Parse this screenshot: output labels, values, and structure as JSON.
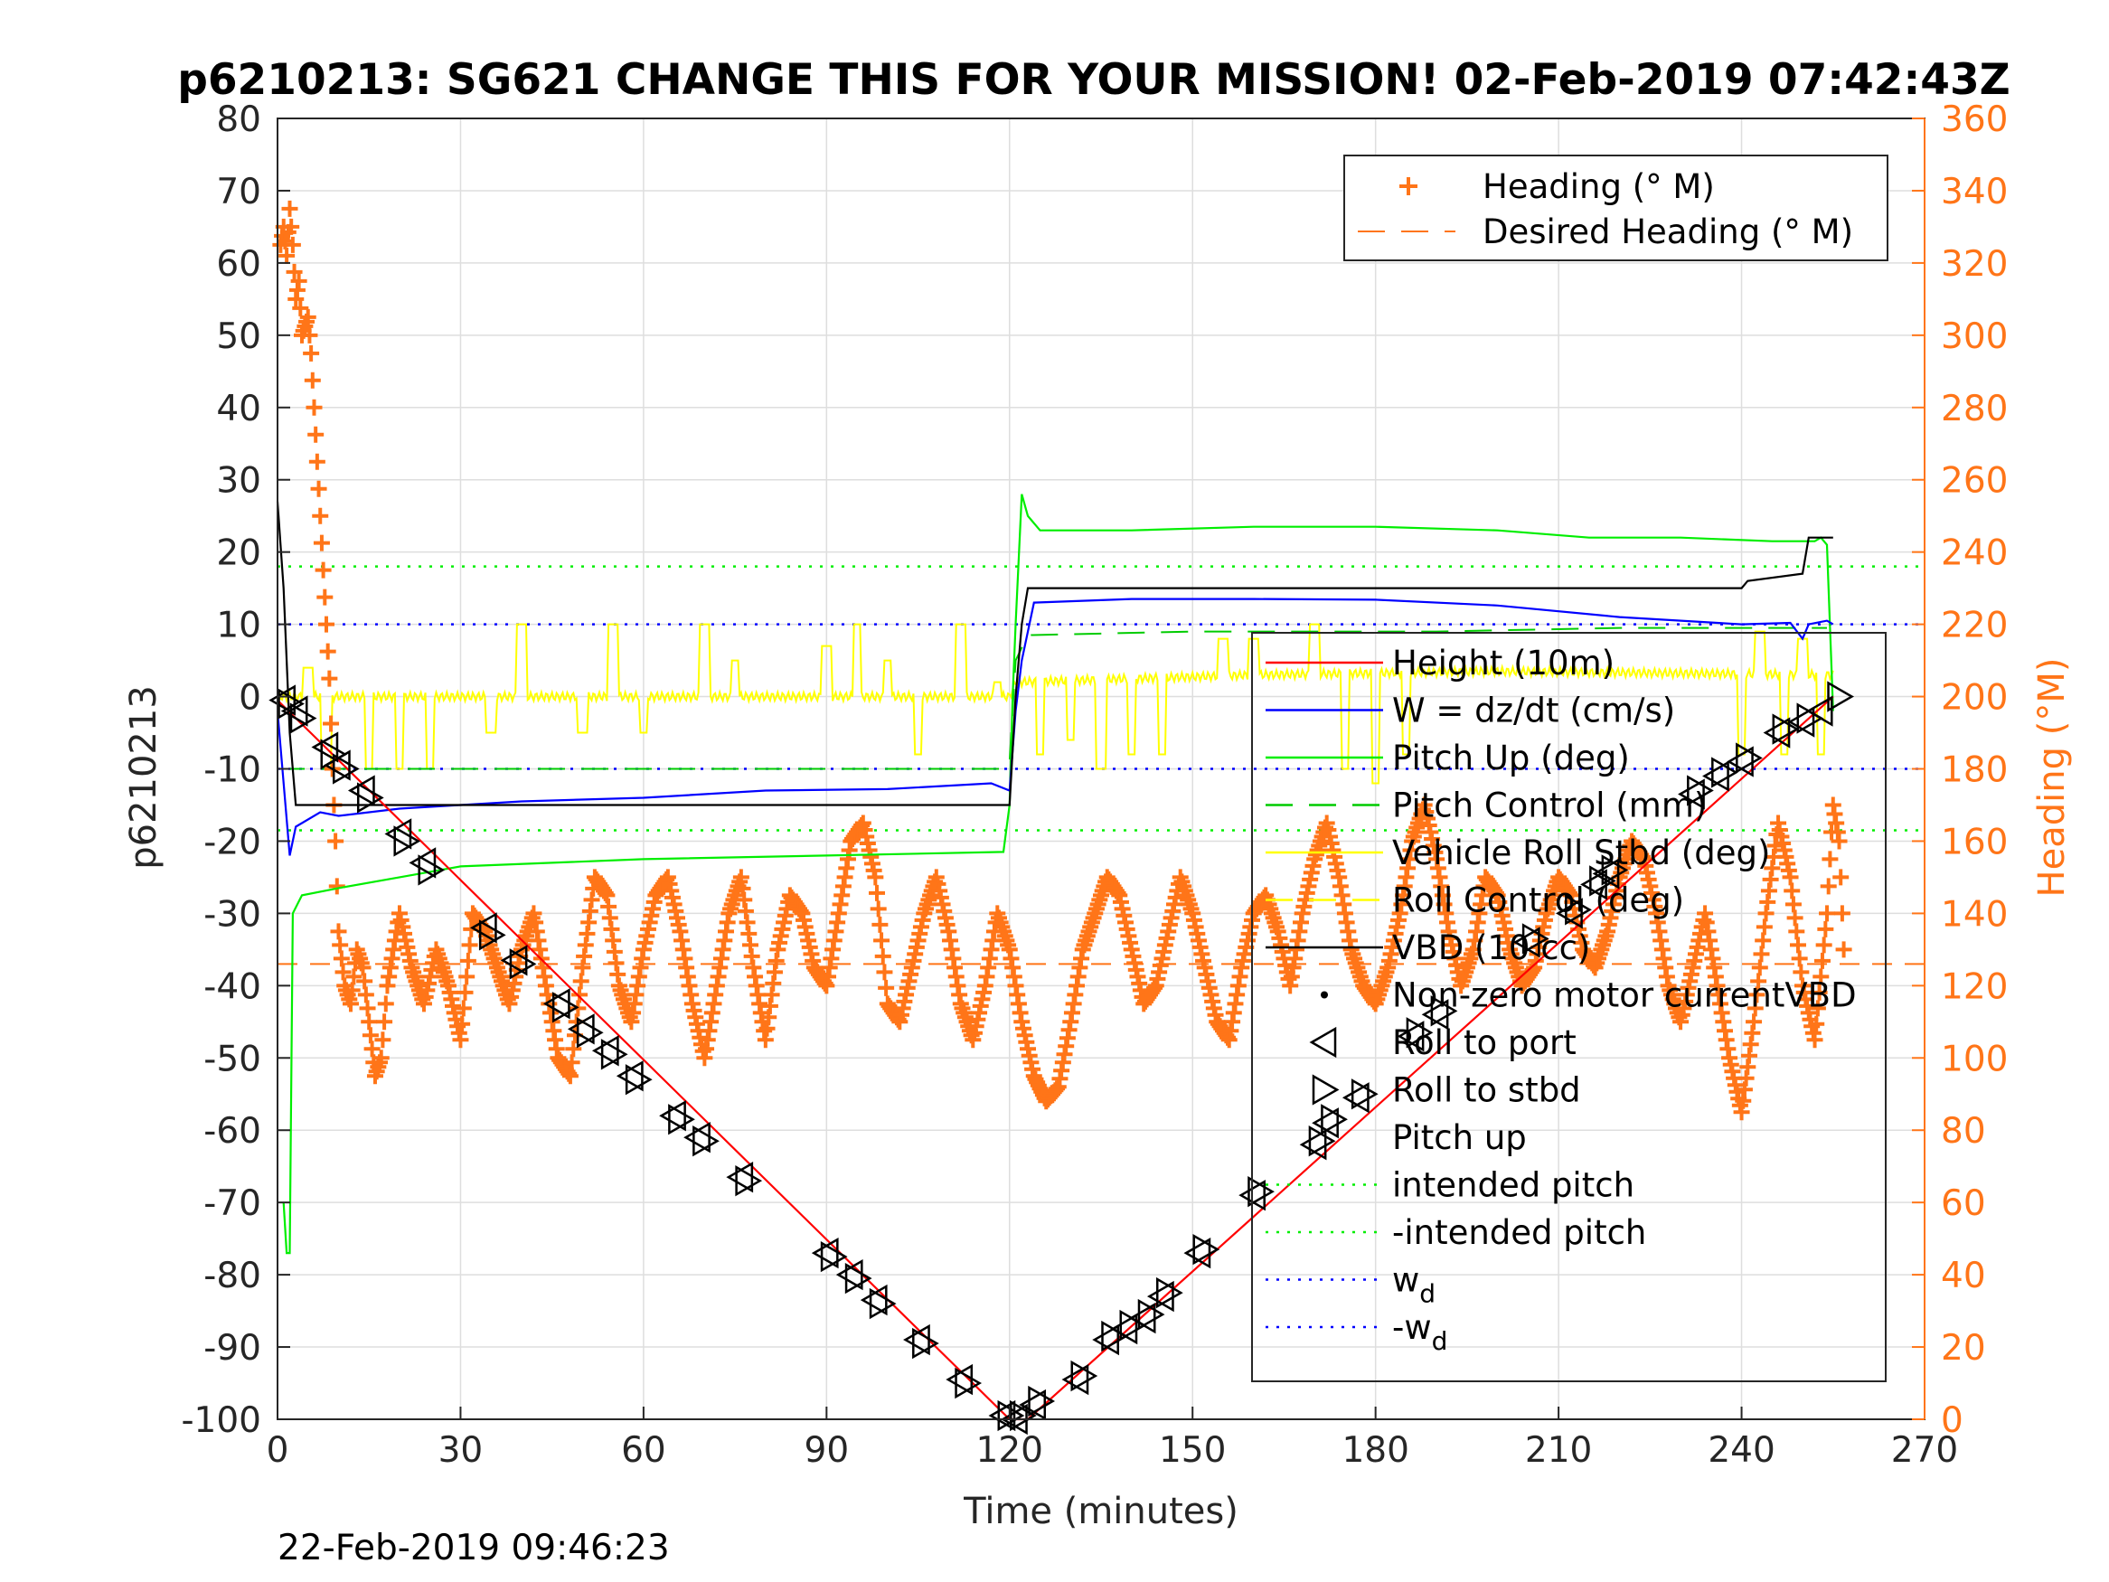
{
  "chart_data": {
    "type": "line",
    "title": "p6210213: SG621 CHANGE THIS FOR YOUR MISSION! 02-Feb-2019 07:42:43Z",
    "xlabel": "Time (minutes)",
    "ylabel_left": "p6210213",
    "ylabel_right": "Heading (°M)",
    "xlim": [
      0,
      270
    ],
    "ylim_left": [
      -100,
      80
    ],
    "ylim_right": [
      0,
      360
    ],
    "xticks": [
      "0",
      "30",
      "60",
      "90",
      "120",
      "150",
      "180",
      "210",
      "240",
      "270"
    ],
    "yticks_left": [
      "80",
      "70",
      "60",
      "50",
      "40",
      "30",
      "20",
      "10",
      "0",
      "-10",
      "-20",
      "-30",
      "-40",
      "-50",
      "-60",
      "-70",
      "-80",
      "-90",
      "-100"
    ],
    "yticks_right": [
      "360",
      "340",
      "320",
      "300",
      "280",
      "260",
      "240",
      "220",
      "200",
      "180",
      "160",
      "140",
      "120",
      "100",
      "80",
      "60",
      "40",
      "20",
      "0"
    ],
    "grid": true,
    "colors": {
      "height": "#ff0000",
      "w": "#0000ff",
      "pitch": "#00ee00",
      "pitch_control": "#00cc00",
      "roll": "#ffff00",
      "vbd": "#000000",
      "heading": "#ff7518",
      "intended": "#00ee00",
      "wd": "#0000ff"
    },
    "legend_top": {
      "placement": "top-right",
      "items": [
        {
          "label": "Heading (° M)",
          "marker": "plus",
          "color": "#ff7518"
        },
        {
          "label": "Desired Heading (° M)",
          "marker": "dash",
          "color": "#ff7518"
        }
      ]
    },
    "legend_main": {
      "placement": "right",
      "items": [
        {
          "label": "Height (10m)",
          "style": "solid",
          "color": "#ff0000"
        },
        {
          "label": "W = dz/dt (cm/s)",
          "style": "solid",
          "color": "#0000ff"
        },
        {
          "label": "Pitch Up (deg)",
          "style": "solid",
          "color": "#00ee00"
        },
        {
          "label": "Pitch Control (mm)",
          "style": "dash",
          "color": "#00cc00"
        },
        {
          "label": "Vehicle Roll Stbd (deg)",
          "style": "solid",
          "color": "#ffff00"
        },
        {
          "label": "Roll Control (deg)",
          "style": "dash",
          "color": "#ffff00"
        },
        {
          "label": "VBD (10 cc)",
          "style": "solid",
          "color": "#000000"
        },
        {
          "label": "Non-zero motor currentVBD",
          "style": "dot",
          "color": "#000000"
        },
        {
          "label": "Roll to port",
          "style": "tri-left",
          "color": "#000000"
        },
        {
          "label": "Roll to stbd",
          "style": "tri-right",
          "color": "#000000"
        },
        {
          "label": "Pitch up",
          "style": "none",
          "color": "#000000"
        },
        {
          "label": "intended pitch",
          "style": "dotted",
          "color": "#00ee00"
        },
        {
          "label": "-intended pitch",
          "style": "dotted",
          "color": "#00ee00"
        },
        {
          "label": "w",
          "sub": "d",
          "style": "dotted",
          "color": "#0000ff"
        },
        {
          "label": "-w",
          "sub": "d",
          "style": "dotted",
          "color": "#0000ff"
        }
      ]
    },
    "constants": {
      "intended_pitch": 18,
      "neg_intended_pitch": -18.5,
      "wd": 10,
      "neg_wd": -10,
      "desired_heading": 126
    },
    "height_path": [
      [
        0,
        -0.5
      ],
      [
        120,
        -100
      ],
      [
        123,
        -100
      ],
      [
        255,
        0
      ]
    ],
    "vbd": [
      [
        0,
        27
      ],
      [
        1,
        15
      ],
      [
        2,
        -5
      ],
      [
        3,
        -15
      ],
      [
        120,
        -15
      ],
      [
        121,
        0
      ],
      [
        122,
        10
      ],
      [
        123,
        15
      ],
      [
        240,
        15
      ],
      [
        241,
        16
      ],
      [
        250,
        17
      ],
      [
        251,
        22
      ],
      [
        255,
        22
      ]
    ],
    "w": [
      [
        0,
        -2
      ],
      [
        2,
        -22
      ],
      [
        3,
        -18
      ],
      [
        7,
        -16
      ],
      [
        10,
        -16.5
      ],
      [
        20,
        -15.5
      ],
      [
        40,
        -14.5
      ],
      [
        60,
        -14
      ],
      [
        80,
        -13
      ],
      [
        100,
        -12.8
      ],
      [
        117,
        -12
      ],
      [
        120,
        -13
      ],
      [
        121,
        -2
      ],
      [
        122,
        5
      ],
      [
        124,
        13
      ],
      [
        140,
        13.5
      ],
      [
        160,
        13.5
      ],
      [
        180,
        13.4
      ],
      [
        200,
        12.6
      ],
      [
        220,
        11
      ],
      [
        240,
        10
      ],
      [
        248,
        10.2
      ],
      [
        250,
        8
      ],
      [
        251,
        10
      ],
      [
        254,
        10.5
      ],
      [
        255,
        10
      ]
    ],
    "pitch": [
      [
        1,
        -70
      ],
      [
        1.5,
        -77
      ],
      [
        2,
        -77
      ],
      [
        2.5,
        -30
      ],
      [
        4,
        -27.5
      ],
      [
        10,
        -26.5
      ],
      [
        20,
        -25
      ],
      [
        30,
        -23.5
      ],
      [
        60,
        -22.5
      ],
      [
        90,
        -22
      ],
      [
        119,
        -21.5
      ],
      [
        120,
        -15
      ],
      [
        120.5,
        0
      ],
      [
        121,
        10
      ],
      [
        122,
        28
      ],
      [
        123,
        25
      ],
      [
        125,
        23
      ],
      [
        140,
        23
      ],
      [
        160,
        23.5
      ],
      [
        180,
        23.5
      ],
      [
        200,
        23
      ],
      [
        215,
        22
      ],
      [
        230,
        22
      ],
      [
        245,
        21.5
      ],
      [
        252,
        21.5
      ],
      [
        253,
        22
      ],
      [
        254,
        21
      ],
      [
        255,
        -2
      ]
    ],
    "pitch_control": [
      [
        0,
        -10
      ],
      [
        119,
        -10
      ],
      [
        120,
        -9
      ],
      [
        121,
        5
      ],
      [
        123,
        8.5
      ],
      [
        150,
        9
      ],
      [
        190,
        9
      ],
      [
        220,
        9.5
      ],
      [
        254,
        9.5
      ]
    ],
    "roll_base": [
      [
        0,
        0
      ],
      [
        120,
        0
      ],
      [
        121,
        2
      ],
      [
        160,
        3
      ],
      [
        200,
        3.5
      ],
      [
        255,
        3
      ]
    ],
    "roll_events": [
      {
        "t": 5,
        "v": 4,
        "w": 1.5
      },
      {
        "t": 8,
        "v": -10,
        "w": 1.5
      },
      {
        "t": 15,
        "v": -10,
        "w": 1.2
      },
      {
        "t": 20,
        "v": -10,
        "w": 1.2
      },
      {
        "t": 25,
        "v": -10,
        "w": 1.2
      },
      {
        "t": 35,
        "v": -5,
        "w": 1.5
      },
      {
        "t": 40,
        "v": 10,
        "w": 1.5
      },
      {
        "t": 50,
        "v": -5,
        "w": 1.5
      },
      {
        "t": 55,
        "v": 10,
        "w": 1.5
      },
      {
        "t": 60,
        "v": -5,
        "w": 1.2
      },
      {
        "t": 70,
        "v": 10,
        "w": 1.5
      },
      {
        "t": 75,
        "v": 5,
        "w": 1.2
      },
      {
        "t": 90,
        "v": 7,
        "w": 1.5
      },
      {
        "t": 95,
        "v": 10,
        "w": 1.2
      },
      {
        "t": 100,
        "v": 5,
        "w": 1.2
      },
      {
        "t": 105,
        "v": -8,
        "w": 1.2
      },
      {
        "t": 112,
        "v": 10,
        "w": 1.5
      },
      {
        "t": 118,
        "v": 2,
        "w": 1.2
      },
      {
        "t": 125,
        "v": -8,
        "w": 1.2
      },
      {
        "t": 130,
        "v": -6,
        "w": 1.2
      },
      {
        "t": 135,
        "v": -10,
        "w": 1.5
      },
      {
        "t": 140,
        "v": -8,
        "w": 1.2
      },
      {
        "t": 145,
        "v": -8,
        "w": 1.2
      },
      {
        "t": 155,
        "v": 8,
        "w": 1.5
      },
      {
        "t": 160,
        "v": 8,
        "w": 1.5
      },
      {
        "t": 170,
        "v": 10,
        "w": 1.5
      },
      {
        "t": 175,
        "v": -10,
        "w": 1.2
      },
      {
        "t": 180,
        "v": -12,
        "w": 1.2
      },
      {
        "t": 185,
        "v": -8,
        "w": 1.2
      },
      {
        "t": 240,
        "v": -8,
        "w": 1.2
      },
      {
        "t": 243,
        "v": 9,
        "w": 1.5
      },
      {
        "t": 247,
        "v": -8,
        "w": 1.2
      },
      {
        "t": 250,
        "v": 8,
        "w": 1.5
      },
      {
        "t": 253,
        "v": -8,
        "w": 1.2
      }
    ],
    "heading": [
      [
        0.5,
        325
      ],
      [
        1,
        330
      ],
      [
        1.5,
        322
      ],
      [
        2,
        335
      ],
      [
        2.5,
        325
      ],
      [
        3,
        310
      ],
      [
        3.5,
        315
      ],
      [
        4,
        300
      ],
      [
        5,
        305
      ],
      [
        5.5,
        295
      ],
      [
        6,
        280
      ],
      [
        6.5,
        265
      ],
      [
        7,
        250
      ],
      [
        7.5,
        235
      ],
      [
        8,
        220
      ],
      [
        8.5,
        205
      ],
      [
        9,
        180
      ],
      [
        9.5,
        160
      ],
      [
        10,
        135
      ],
      [
        11,
        120
      ],
      [
        12,
        115
      ],
      [
        13,
        130
      ],
      [
        14,
        125
      ],
      [
        15,
        110
      ],
      [
        16,
        95
      ],
      [
        17,
        100
      ],
      [
        18,
        120
      ],
      [
        20,
        140
      ],
      [
        22,
        125
      ],
      [
        24,
        115
      ],
      [
        26,
        130
      ],
      [
        28,
        120
      ],
      [
        30,
        105
      ],
      [
        32,
        140
      ],
      [
        34,
        135
      ],
      [
        36,
        125
      ],
      [
        38,
        115
      ],
      [
        40,
        130
      ],
      [
        42,
        140
      ],
      [
        44,
        120
      ],
      [
        46,
        100
      ],
      [
        48,
        95
      ],
      [
        50,
        125
      ],
      [
        52,
        150
      ],
      [
        54,
        145
      ],
      [
        56,
        120
      ],
      [
        58,
        110
      ],
      [
        60,
        130
      ],
      [
        62,
        145
      ],
      [
        64,
        150
      ],
      [
        66,
        135
      ],
      [
        68,
        115
      ],
      [
        70,
        100
      ],
      [
        72,
        120
      ],
      [
        74,
        140
      ],
      [
        76,
        150
      ],
      [
        78,
        125
      ],
      [
        80,
        105
      ],
      [
        82,
        130
      ],
      [
        84,
        145
      ],
      [
        86,
        140
      ],
      [
        88,
        125
      ],
      [
        90,
        120
      ],
      [
        92,
        140
      ],
      [
        94,
        160
      ],
      [
        96,
        165
      ],
      [
        98,
        150
      ],
      [
        100,
        115
      ],
      [
        102,
        110
      ],
      [
        104,
        125
      ],
      [
        106,
        140
      ],
      [
        108,
        150
      ],
      [
        110,
        135
      ],
      [
        112,
        115
      ],
      [
        114,
        105
      ],
      [
        116,
        120
      ],
      [
        118,
        140
      ],
      [
        120,
        130
      ],
      [
        122,
        110
      ],
      [
        124,
        95
      ],
      [
        126,
        88
      ],
      [
        128,
        92
      ],
      [
        130,
        110
      ],
      [
        132,
        130
      ],
      [
        134,
        140
      ],
      [
        136,
        150
      ],
      [
        138,
        145
      ],
      [
        140,
        130
      ],
      [
        142,
        115
      ],
      [
        144,
        120
      ],
      [
        146,
        135
      ],
      [
        148,
        150
      ],
      [
        150,
        140
      ],
      [
        152,
        125
      ],
      [
        154,
        110
      ],
      [
        156,
        105
      ],
      [
        158,
        125
      ],
      [
        160,
        140
      ],
      [
        162,
        145
      ],
      [
        164,
        135
      ],
      [
        166,
        120
      ],
      [
        168,
        140
      ],
      [
        170,
        155
      ],
      [
        172,
        165
      ],
      [
        174,
        150
      ],
      [
        176,
        130
      ],
      [
        178,
        120
      ],
      [
        180,
        115
      ],
      [
        182,
        125
      ],
      [
        184,
        140
      ],
      [
        186,
        160
      ],
      [
        188,
        170
      ],
      [
        190,
        155
      ],
      [
        192,
        135
      ],
      [
        194,
        120
      ],
      [
        196,
        130
      ],
      [
        198,
        150
      ],
      [
        200,
        145
      ],
      [
        202,
        130
      ],
      [
        204,
        120
      ],
      [
        206,
        125
      ],
      [
        208,
        140
      ],
      [
        210,
        150
      ],
      [
        212,
        145
      ],
      [
        214,
        130
      ],
      [
        216,
        125
      ],
      [
        218,
        135
      ],
      [
        220,
        150
      ],
      [
        222,
        160
      ],
      [
        224,
        155
      ],
      [
        226,
        140
      ],
      [
        228,
        120
      ],
      [
        230,
        110
      ],
      [
        232,
        125
      ],
      [
        234,
        140
      ],
      [
        236,
        120
      ],
      [
        238,
        100
      ],
      [
        240,
        85
      ],
      [
        242,
        110
      ],
      [
        244,
        140
      ],
      [
        246,
        165
      ],
      [
        248,
        150
      ],
      [
        250,
        120
      ],
      [
        252,
        105
      ],
      [
        254,
        140
      ],
      [
        255,
        170
      ],
      [
        256,
        160
      ],
      [
        257,
        120
      ]
    ],
    "roll_port_markers": [
      [
        1,
        -0.5
      ],
      [
        3,
        -2
      ],
      [
        8,
        -7
      ],
      [
        10,
        -9.5
      ],
      [
        14,
        -13
      ],
      [
        20,
        -19
      ],
      [
        24,
        -23
      ],
      [
        34,
        -32
      ],
      [
        39,
        -36.5
      ],
      [
        46,
        -42.5
      ],
      [
        50,
        -46
      ],
      [
        54,
        -49
      ],
      [
        58,
        -52.5
      ],
      [
        65,
        -58
      ],
      [
        69,
        -61
      ],
      [
        76,
        -66.5
      ],
      [
        90,
        -77
      ],
      [
        94,
        -80
      ],
      [
        98,
        -83.5
      ],
      [
        105,
        -89
      ],
      [
        112,
        -94.5
      ],
      [
        119,
        -99.5
      ],
      [
        121,
        -100
      ],
      [
        124,
        -98
      ],
      [
        131,
        -94.5
      ],
      [
        136,
        -89
      ],
      [
        139,
        -87.5
      ],
      [
        142,
        -86
      ],
      [
        145,
        -83
      ],
      [
        151,
        -77
      ],
      [
        160,
        -69
      ],
      [
        170,
        -62
      ],
      [
        172,
        -59
      ],
      [
        177,
        -55.5
      ],
      [
        186,
        -47
      ],
      [
        190,
        -44
      ],
      [
        205,
        -34
      ],
      [
        212,
        -30
      ],
      [
        216,
        -26
      ],
      [
        218,
        -24.5
      ],
      [
        232,
        -13.5
      ],
      [
        236,
        -11
      ],
      [
        240,
        -9
      ],
      [
        246,
        -5
      ],
      [
        250,
        -3.5
      ],
      [
        253,
        -2
      ]
    ],
    "roll_stbd_markers": [
      [
        2,
        -1
      ],
      [
        4,
        -3
      ],
      [
        9,
        -8
      ],
      [
        11,
        -10
      ],
      [
        15,
        -14
      ],
      [
        21,
        -20
      ],
      [
        25,
        -24
      ],
      [
        35,
        -33
      ],
      [
        40,
        -37
      ],
      [
        47,
        -43
      ],
      [
        51,
        -46.5
      ],
      [
        55,
        -49.5
      ],
      [
        59,
        -53
      ],
      [
        66,
        -58.5
      ],
      [
        70,
        -61.5
      ],
      [
        77,
        -67
      ],
      [
        91,
        -77.5
      ],
      [
        95,
        -80.5
      ],
      [
        99,
        -84
      ],
      [
        106,
        -89.5
      ],
      [
        113,
        -95
      ],
      [
        120,
        -99.5
      ],
      [
        122,
        -99.5
      ],
      [
        125,
        -97.5
      ],
      [
        132,
        -94
      ],
      [
        137,
        -88.5
      ],
      [
        140,
        -87
      ],
      [
        143,
        -85.5
      ],
      [
        146,
        -82.5
      ],
      [
        152,
        -76.5
      ],
      [
        161,
        -68.5
      ],
      [
        171,
        -61.5
      ],
      [
        173,
        -58.5
      ],
      [
        178,
        -55
      ],
      [
        187,
        -46.5
      ],
      [
        191,
        -43.5
      ],
      [
        206,
        -33.5
      ],
      [
        213,
        -29.5
      ],
      [
        217,
        -25.5
      ],
      [
        219,
        -24
      ],
      [
        233,
        -13
      ],
      [
        237,
        -10.5
      ],
      [
        241,
        -8.5
      ],
      [
        247,
        -4.5
      ],
      [
        251,
        -3
      ],
      [
        256,
        0
      ]
    ]
  },
  "timestamp": "22-Feb-2019 09:46:23"
}
